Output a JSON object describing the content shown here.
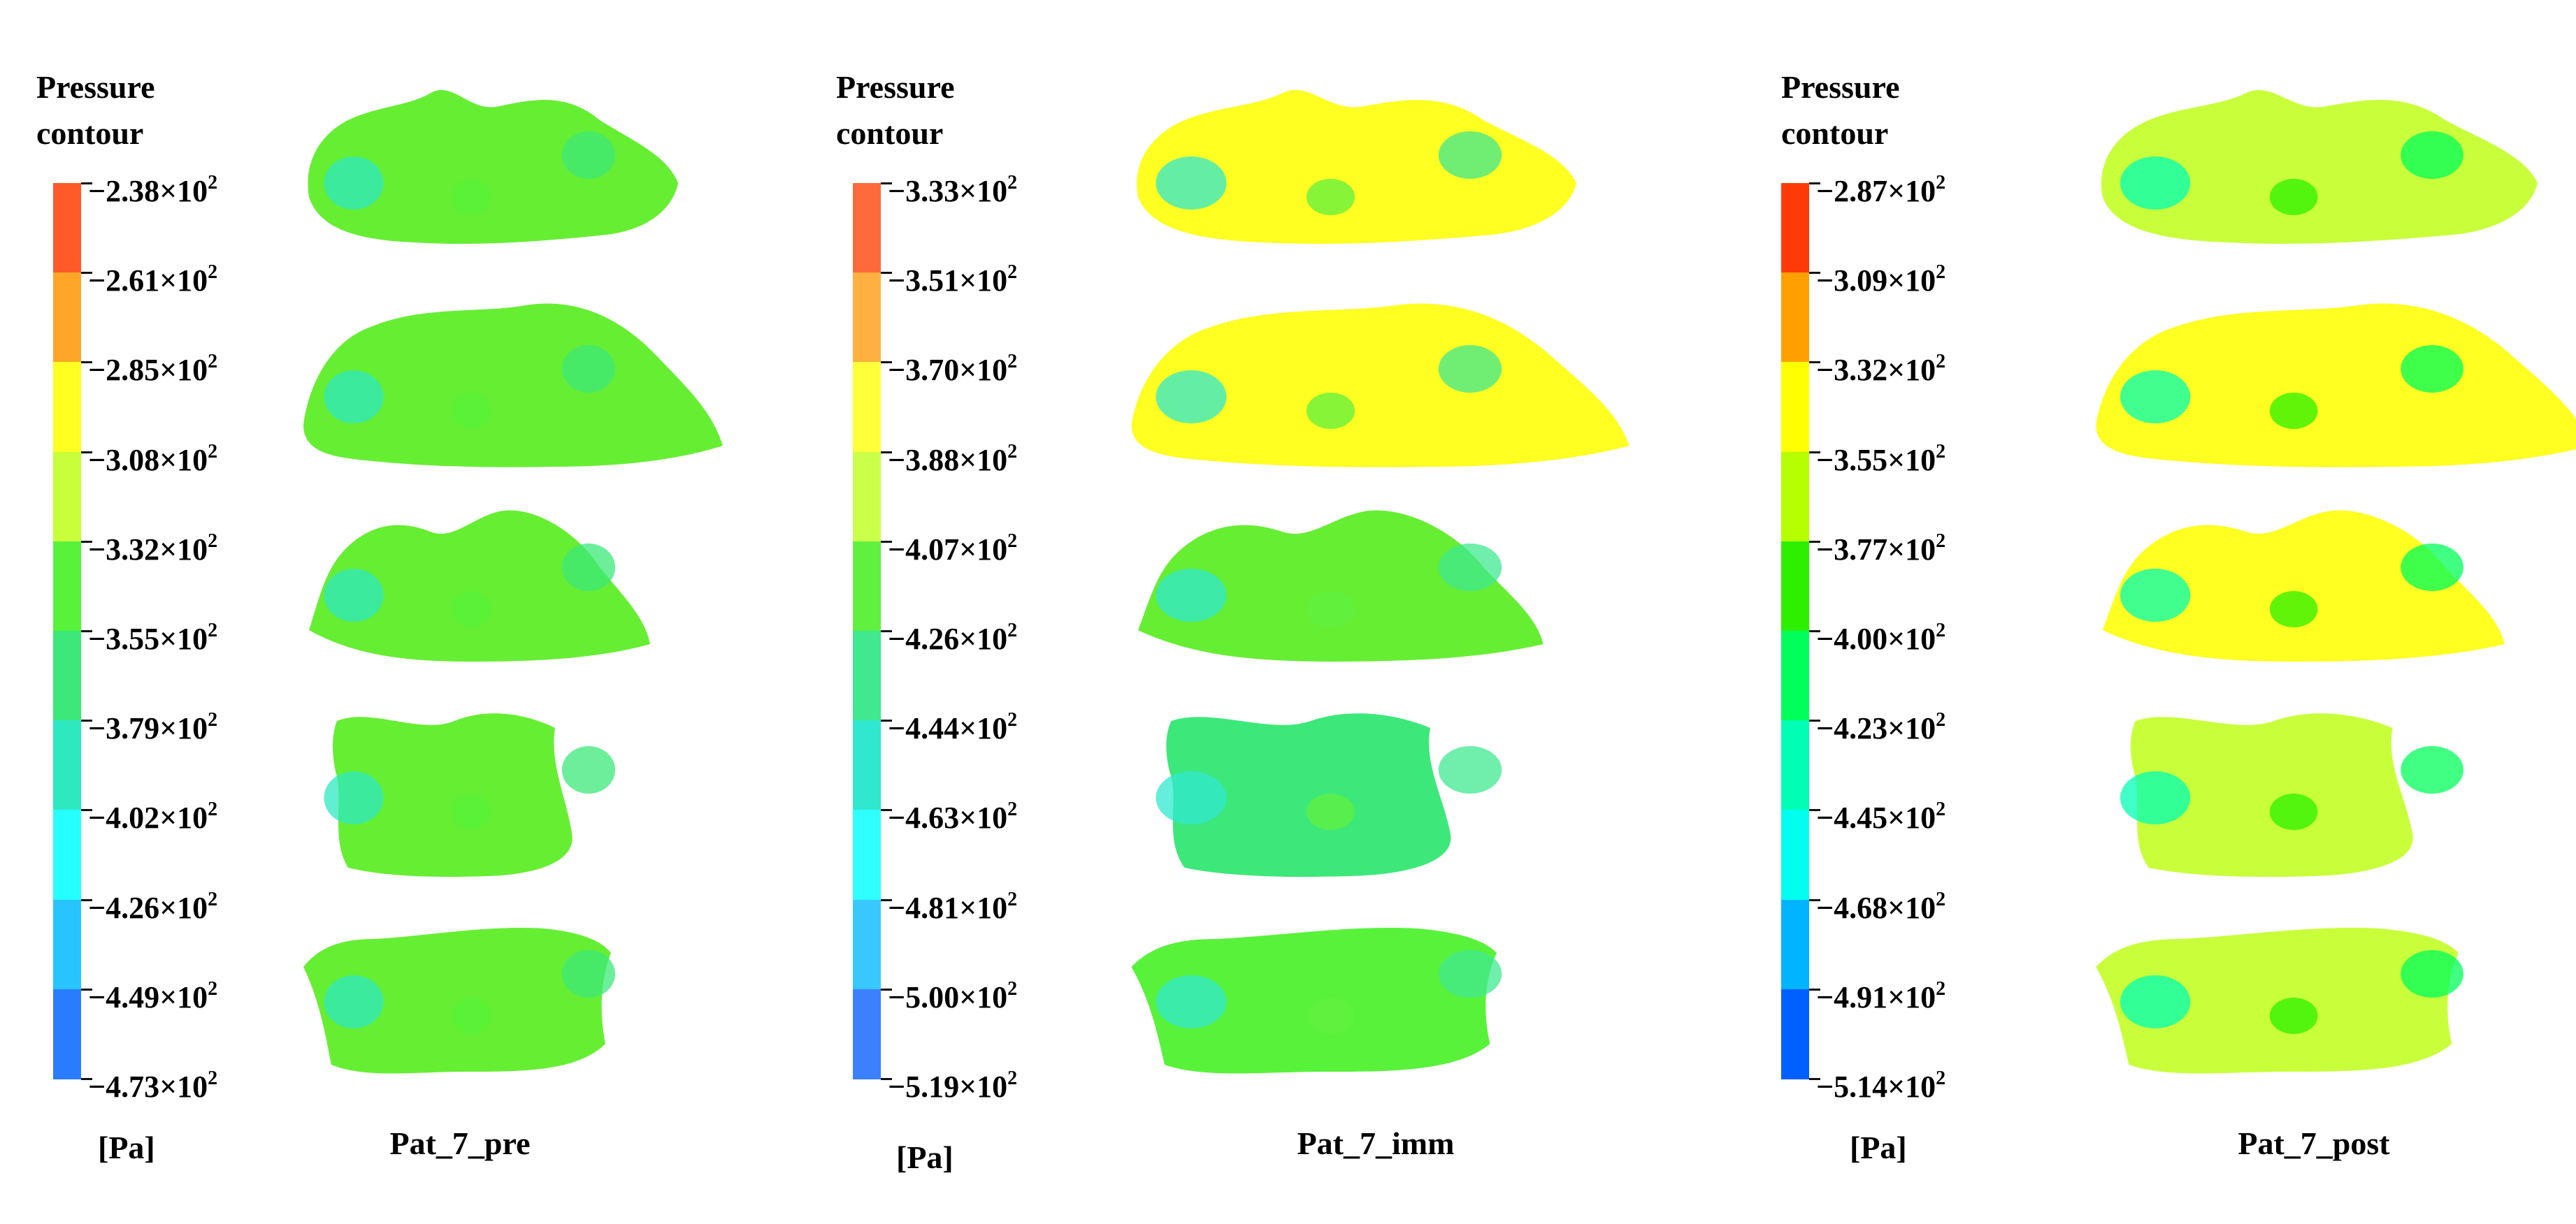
{
  "figure": {
    "description_text": ""
  },
  "chart_data": [
    {
      "type": "heatmap",
      "title": "Pressure contour",
      "unit": "[Pa]",
      "label": "Pat_7_pre",
      "colorbar_ticks": [
        "−2.38×10",
        "−2.61×10",
        "−2.85×10",
        "−3.08×10",
        "−3.32×10",
        "−3.55×10",
        "−3.79×10",
        "−4.02×10",
        "−4.26×10",
        "−4.49×10",
        "−4.73×10"
      ],
      "tick_exponent": "2",
      "values": [
        -238,
        -261,
        -285,
        -308,
        -332,
        -355,
        -379,
        -402,
        -426,
        -449,
        -473
      ],
      "colors": [
        "#ff5a28",
        "#ffa628",
        "#ffff22",
        "#c8ff3a",
        "#58f23a",
        "#3ce87a",
        "#2ee8c0",
        "#26ffff",
        "#28c4ff",
        "#2a7cff",
        "#3150ff"
      ],
      "shape_colors": [
        "#66ee33",
        "#66ee33",
        "#66ee33",
        "#66ee33",
        "#66ee33"
      ]
    },
    {
      "type": "heatmap",
      "title": "Pressure contour",
      "unit": "[Pa]",
      "label": "Pat_7_imm",
      "colorbar_ticks": [
        "−3.33×10",
        "−3.51×10",
        "−3.70×10",
        "−3.88×10",
        "−4.07×10",
        "−4.26×10",
        "−4.44×10",
        "−4.63×10",
        "−4.81×10",
        "−5.00×10",
        "−5.19×10"
      ],
      "tick_exponent": "2",
      "values": [
        -333,
        -351,
        -370,
        -388,
        -407,
        -426,
        -444,
        -463,
        -481,
        -500,
        -519
      ],
      "colors": [
        "#ff6a3a",
        "#ffb040",
        "#ffff3a",
        "#caff4a",
        "#60f040",
        "#40e890",
        "#30e8d0",
        "#30ffff",
        "#38c8ff",
        "#3a80ff",
        "#3a5aff"
      ],
      "shape_colors": [
        "#ffff22",
        "#ffff22",
        "#66ee33",
        "#3ce87a",
        "#58f23a"
      ]
    },
    {
      "type": "heatmap",
      "title": "Pressure contour",
      "unit": "[Pa]",
      "label": "Pat_7_post",
      "colorbar_ticks": [
        "−2.87×10",
        "−3.09×10",
        "−3.32×10",
        "−3.55×10",
        "−3.77×10",
        "−4.00×10",
        "−4.23×10",
        "−4.45×10",
        "−4.68×10",
        "−4.91×10",
        "−5.14×10"
      ],
      "tick_exponent": "2",
      "values": [
        -287,
        -309,
        -332,
        -355,
        -377,
        -400,
        -423,
        -445,
        -468,
        -491,
        -514
      ],
      "colors": [
        "#ff3a08",
        "#ffa000",
        "#ffff00",
        "#b6ff00",
        "#2cf000",
        "#00ff5a",
        "#00ffb4",
        "#00ffee",
        "#00b4ff",
        "#0060ff",
        "#0030ff"
      ],
      "shape_colors": [
        "#c8ff3a",
        "#ffff22",
        "#ffff22",
        "#c8ff3a",
        "#c8ff3a"
      ]
    }
  ]
}
